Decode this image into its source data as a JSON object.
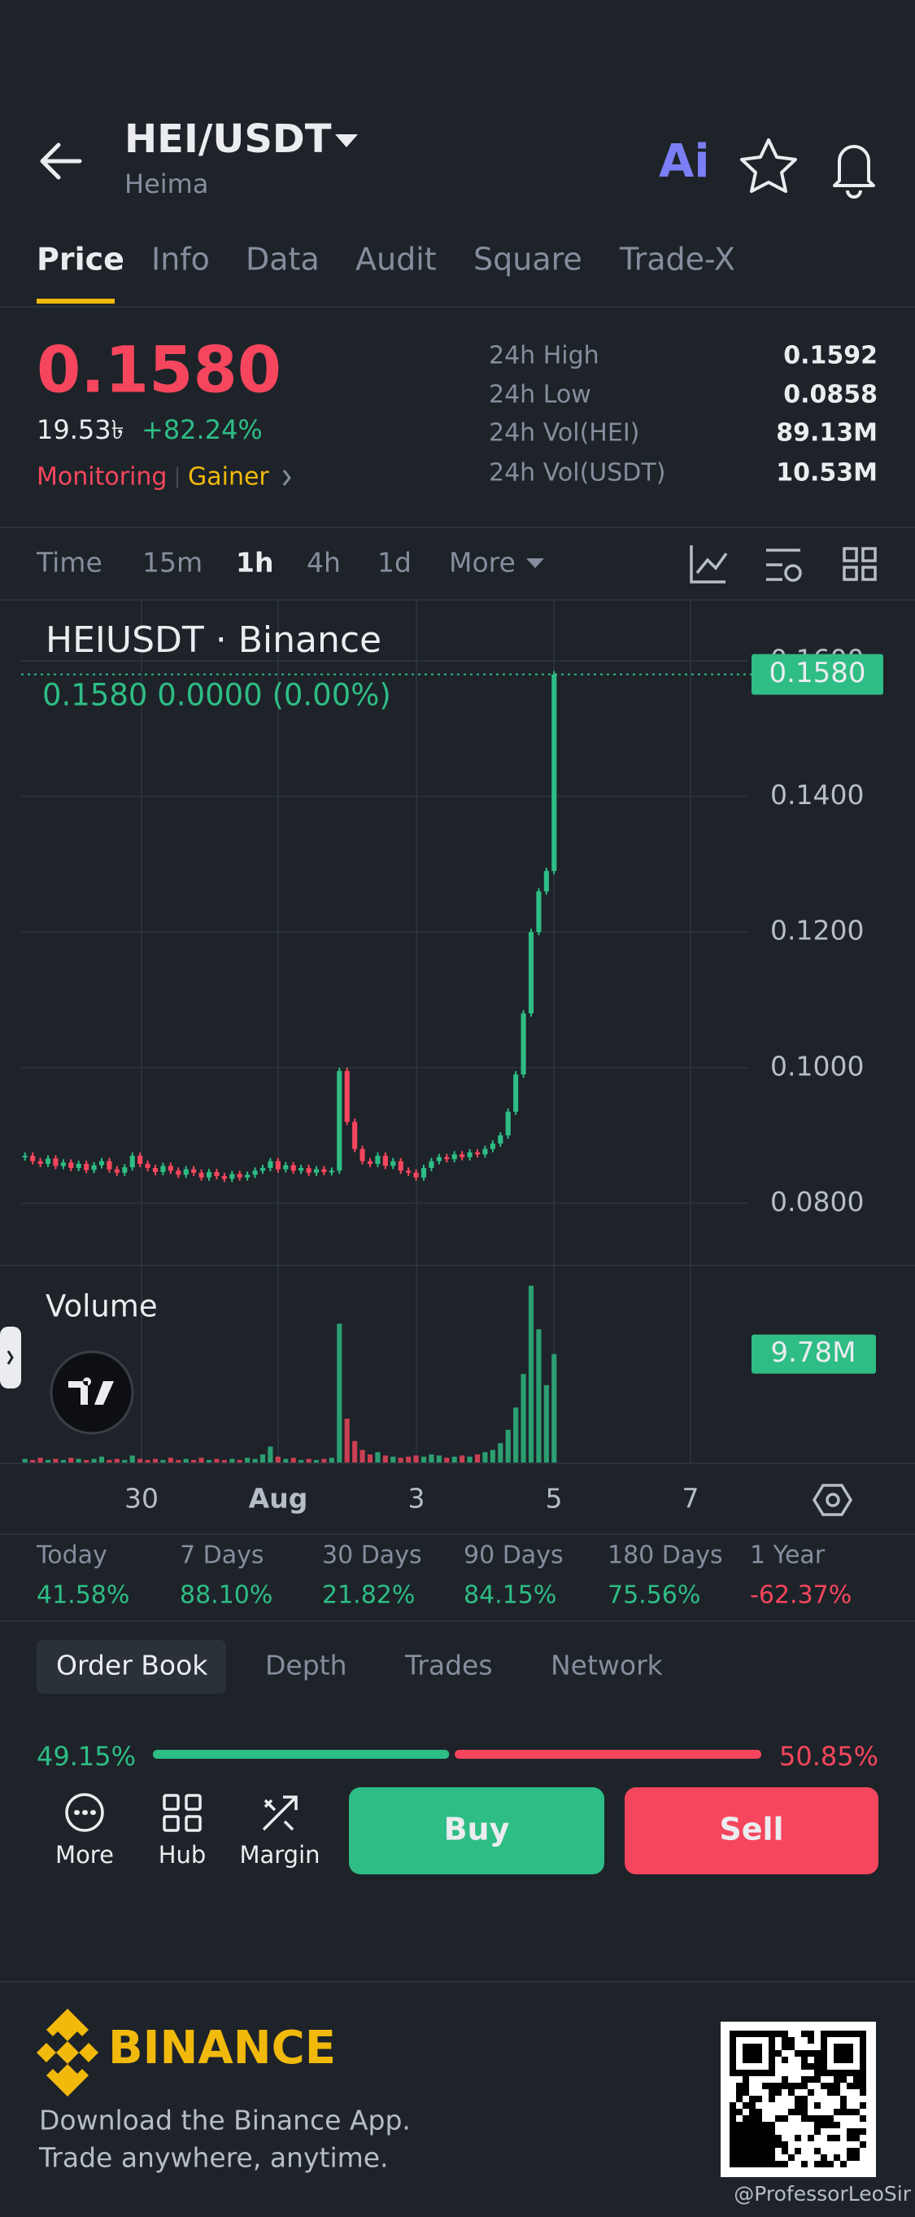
{
  "header": {
    "pair": "HEI/USDT",
    "name": "Heima"
  },
  "tabs": [
    "Price",
    "Info",
    "Data",
    "Audit",
    "Square",
    "Trade-X"
  ],
  "ticker": {
    "price": "0.1580",
    "fiat": "19.53৳",
    "change": "+82.24%",
    "tags": [
      "Monitoring",
      "Gainer"
    ],
    "stats": [
      {
        "label": "24h High",
        "value": "0.1592"
      },
      {
        "label": "24h Low",
        "value": "0.0858"
      },
      {
        "label": "24h Vol(HEI)",
        "value": "89.13M"
      },
      {
        "label": "24h Vol(USDT)",
        "value": "10.53M"
      }
    ]
  },
  "intervals": [
    "Time",
    "15m",
    "1h",
    "4h",
    "1d",
    "More"
  ],
  "chart": {
    "type": "candlestick",
    "title": "HEIUSDT · Binance",
    "legend": "0.1580  0.0000 (0.00%)",
    "last_label": "0.1580",
    "close": [
      0.087,
      0.0862,
      0.0858,
      0.0866,
      0.0855,
      0.086,
      0.0852,
      0.0858,
      0.0849,
      0.0856,
      0.0862,
      0.085,
      0.0845,
      0.0853,
      0.087,
      0.0858,
      0.0852,
      0.0846,
      0.0855,
      0.0848,
      0.0842,
      0.085,
      0.0845,
      0.0838,
      0.0846,
      0.084,
      0.0836,
      0.0843,
      0.0838,
      0.0842,
      0.0848,
      0.0852,
      0.0862,
      0.085,
      0.0856,
      0.0848,
      0.0852,
      0.0845,
      0.085,
      0.0846,
      0.0848,
      0.0995,
      0.092,
      0.088,
      0.0862,
      0.0858,
      0.087,
      0.0855,
      0.0862,
      0.0848,
      0.0845,
      0.0838,
      0.0852,
      0.0862,
      0.0868,
      0.0865,
      0.0872,
      0.0868,
      0.0875,
      0.0872,
      0.088,
      0.0888,
      0.09,
      0.0935,
      0.099,
      0.108,
      0.12,
      0.126,
      0.129,
      0.158
    ],
    "ylim": [
      0.0708,
      0.169
    ],
    "yticks": [
      {
        "value": 0.08,
        "label": "0.0800"
      },
      {
        "value": 0.1,
        "label": "0.1000"
      },
      {
        "value": 0.12,
        "label": "0.1200"
      },
      {
        "value": 0.14,
        "label": "0.1400"
      },
      {
        "value": 0.16,
        "label": "0.1600"
      }
    ],
    "x_labels": [
      "30",
      "Aug",
      "3",
      "5",
      "7"
    ],
    "volume_title": "Volume",
    "volume_label": "9.78M",
    "volume": [
      0.4,
      0.3,
      0.5,
      0.3,
      0.4,
      0.3,
      0.5,
      0.4,
      0.3,
      0.4,
      0.6,
      0.3,
      0.4,
      0.3,
      0.7,
      0.4,
      0.3,
      0.4,
      0.3,
      0.5,
      0.3,
      0.4,
      0.3,
      0.5,
      0.3,
      0.4,
      0.3,
      0.4,
      0.3,
      0.5,
      0.4,
      0.8,
      1.5,
      0.6,
      0.4,
      0.5,
      0.3,
      0.4,
      0.3,
      0.4,
      0.5,
      12.5,
      4.0,
      2.0,
      1.2,
      0.8,
      1.0,
      0.7,
      0.6,
      0.5,
      0.6,
      0.7,
      0.6,
      0.8,
      0.7,
      0.5,
      0.6,
      0.7,
      0.6,
      0.8,
      1.0,
      1.2,
      1.8,
      3.0,
      5.0,
      8.0,
      15.9,
      12.0,
      7.0,
      9.78
    ],
    "volume_ylim": [
      0,
      17.7
    ]
  },
  "performance": [
    {
      "label": "Today",
      "value": "41.58%"
    },
    {
      "label": "7 Days",
      "value": "88.10%"
    },
    {
      "label": "30 Days",
      "value": "21.82%"
    },
    {
      "label": "90 Days",
      "value": "84.15%"
    },
    {
      "label": "180 Days",
      "value": "75.56%"
    },
    {
      "label": "1 Year",
      "value": "-62.37%"
    }
  ],
  "order_tabs": [
    "Order Book",
    "Depth",
    "Trades",
    "Network"
  ],
  "ratio": {
    "values": [
      49.15,
      50.85
    ],
    "value_labels": [
      "49.15%",
      "50.85%"
    ]
  },
  "actions": [
    "More",
    "Hub",
    "Margin"
  ],
  "buttons": [
    "Buy",
    "Sell"
  ],
  "footer": {
    "brand": "BINANCE",
    "lines": [
      "Download the Binance App.",
      "Trade anywhere, anytime."
    ],
    "watermark": "@ProfessorLeoSir"
  }
}
